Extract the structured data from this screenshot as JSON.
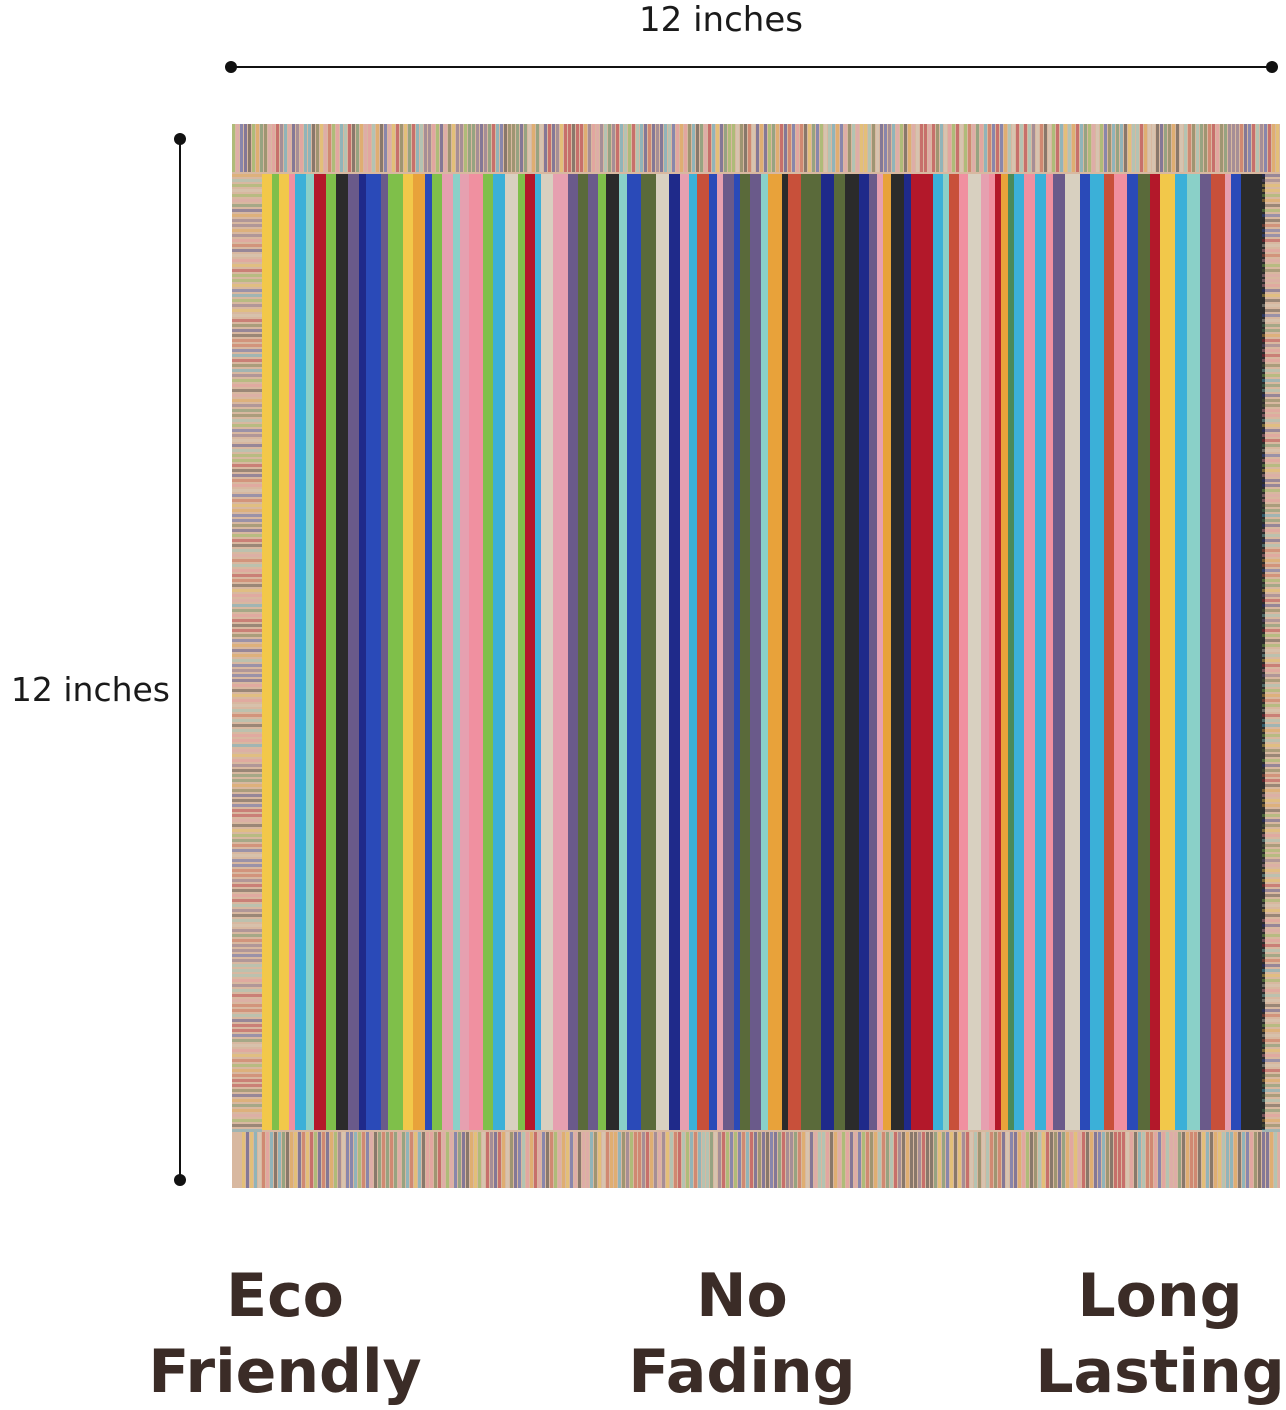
{
  "dimensions": {
    "width_label": "12 inches",
    "height_label": "12 inches"
  },
  "product": {
    "stripe_palette": [
      "#1f2a8a",
      "#b3182a",
      "#2b2b2b",
      "#7fbf4a",
      "#e8a23a",
      "#e6a0b0",
      "#3bb0d8",
      "#6a5a8a",
      "#f2c84a",
      "#4a8a5a",
      "#d8d0c0",
      "#c8503a",
      "#8ad0c8",
      "#5a6a3a",
      "#f090a0",
      "#2a4ab8"
    ],
    "border_color": "#d8b8a0"
  },
  "features": [
    {
      "line1": "Eco",
      "line2": "Friendly"
    },
    {
      "line1": "No",
      "line2": "Fading"
    },
    {
      "line1": "Long",
      "line2": "Lasting"
    }
  ],
  "colors": {
    "text": "#3b2c27"
  }
}
